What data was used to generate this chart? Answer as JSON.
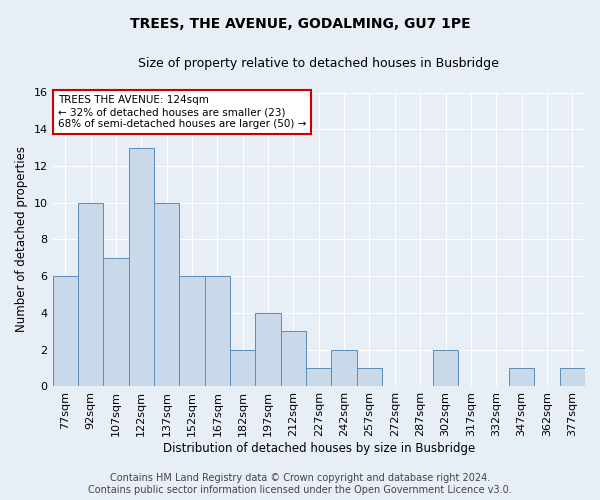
{
  "title": "TREES, THE AVENUE, GODALMING, GU7 1PE",
  "subtitle": "Size of property relative to detached houses in Busbridge",
  "xlabel": "Distribution of detached houses by size in Busbridge",
  "ylabel": "Number of detached properties",
  "categories": [
    "77sqm",
    "92sqm",
    "107sqm",
    "122sqm",
    "137sqm",
    "152sqm",
    "167sqm",
    "182sqm",
    "197sqm",
    "212sqm",
    "227sqm",
    "242sqm",
    "257sqm",
    "272sqm",
    "287sqm",
    "302sqm",
    "317sqm",
    "332sqm",
    "347sqm",
    "362sqm",
    "377sqm"
  ],
  "values": [
    6,
    10,
    7,
    13,
    10,
    6,
    6,
    2,
    4,
    3,
    1,
    2,
    1,
    0,
    0,
    2,
    0,
    0,
    1,
    0,
    1
  ],
  "bar_color": "#c9d9ea",
  "bar_edge_color": "#5b8db8",
  "annotation_title": "TREES THE AVENUE: 124sqm",
  "annotation_line1": "← 32% of detached houses are smaller (23)",
  "annotation_line2": "68% of semi-detached houses are larger (50) →",
  "annotation_box_color": "#ffffff",
  "annotation_box_edge": "#cc0000",
  "ylim": [
    0,
    16
  ],
  "yticks": [
    0,
    2,
    4,
    6,
    8,
    10,
    12,
    14,
    16
  ],
  "footer_line1": "Contains HM Land Registry data © Crown copyright and database right 2024.",
  "footer_line2": "Contains public sector information licensed under the Open Government Licence v3.0.",
  "bg_color": "#e8eef5",
  "plot_bg_color": "#e8eef5",
  "grid_color": "#ffffff",
  "title_fontsize": 10,
  "subtitle_fontsize": 9,
  "axis_label_fontsize": 8.5,
  "tick_fontsize": 8,
  "annotation_fontsize": 7.5,
  "footer_fontsize": 7
}
